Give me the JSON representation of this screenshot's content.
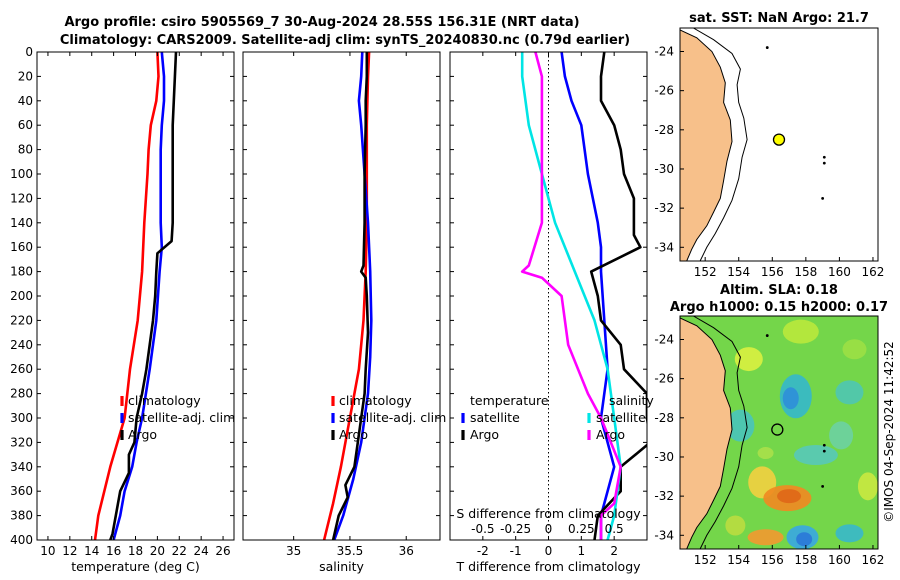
{
  "title_line1": "Argo profile: csiro 5905569_7 30-Aug-2024 28.55S 156.31E (NRT data)",
  "title_line2": "Climatology: CARS2009. Satellite-adj clim: synTS_20240830.nc (0.79d earlier)",
  "credit": "©IMOS 04-Sep-2024 11:42:52",
  "colors": {
    "climatology": "#ff0000",
    "satellite": "#0000ff",
    "argo": "#000000",
    "sat_salinity": "#00e5e5",
    "argo_salinity": "#ff00ff",
    "land": "#f7c08a"
  },
  "chart_data": [
    {
      "type": "line",
      "id": "temperature",
      "xlabel": "temperature (deg C)",
      "ylabel": "",
      "xlim": [
        9,
        27
      ],
      "ylim": [
        400,
        0
      ],
      "xticks": [
        10,
        12,
        14,
        16,
        18,
        20,
        22,
        24,
        26
      ],
      "yticks": [
        0,
        20,
        40,
        60,
        80,
        100,
        120,
        140,
        160,
        180,
        200,
        220,
        240,
        260,
        280,
        300,
        320,
        340,
        360,
        380,
        400
      ],
      "series": [
        {
          "name": "climatology",
          "depth": [
            0,
            20,
            40,
            60,
            80,
            100,
            140,
            180,
            220,
            260,
            300,
            340,
            380,
            400
          ],
          "values": [
            20.0,
            20.1,
            19.9,
            19.4,
            19.2,
            19.1,
            18.8,
            18.6,
            18.2,
            17.5,
            17.0,
            15.7,
            14.6,
            14.3
          ]
        },
        {
          "name": "satellite-adj. clim",
          "depth": [
            0,
            20,
            40,
            60,
            80,
            100,
            140,
            160,
            180,
            220,
            260,
            300,
            320,
            340,
            360,
            380,
            400
          ],
          "values": [
            20.4,
            20.6,
            20.6,
            20.4,
            20.3,
            20.3,
            20.3,
            20.4,
            20.2,
            19.9,
            19.3,
            18.6,
            18.1,
            17.7,
            17.0,
            16.6,
            16.0
          ]
        },
        {
          "name": "Argo",
          "depth": [
            0,
            20,
            40,
            60,
            80,
            100,
            120,
            140,
            155,
            165,
            180,
            200,
            220,
            240,
            260,
            280,
            300,
            320,
            330,
            345,
            360,
            380,
            395,
            400
          ],
          "values": [
            21.7,
            21.6,
            21.5,
            21.4,
            21.4,
            21.4,
            21.4,
            21.4,
            21.3,
            20.0,
            19.9,
            19.8,
            19.6,
            19.3,
            19.0,
            18.6,
            18.1,
            17.9,
            17.4,
            17.4,
            16.6,
            16.2,
            15.9,
            15.7
          ]
        }
      ],
      "legend": [
        "climatology",
        "satellite-adj. clim",
        "Argo"
      ]
    },
    {
      "type": "line",
      "id": "salinity",
      "xlabel": "salinity",
      "ylabel": "",
      "xlim": [
        34.55,
        36.3
      ],
      "ylim": [
        400,
        0
      ],
      "xticks": [
        35,
        35.5,
        36
      ],
      "series": [
        {
          "name": "climatology",
          "depth": [
            0,
            20,
            60,
            100,
            140,
            180,
            220,
            260,
            280,
            300,
            340,
            370,
            400
          ],
          "values": [
            35.67,
            35.66,
            35.65,
            35.65,
            35.65,
            35.64,
            35.62,
            35.58,
            35.54,
            35.5,
            35.42,
            35.35,
            35.27
          ]
        },
        {
          "name": "satellite-adj. clim",
          "depth": [
            0,
            20,
            40,
            60,
            100,
            140,
            180,
            220,
            250,
            280,
            300,
            320,
            350,
            380,
            400
          ],
          "values": [
            35.61,
            35.6,
            35.58,
            35.6,
            35.63,
            35.66,
            35.68,
            35.69,
            35.68,
            35.66,
            35.63,
            35.6,
            35.53,
            35.44,
            35.36
          ]
        },
        {
          "name": "Argo",
          "depth": [
            0,
            20,
            40,
            60,
            100,
            140,
            175,
            180,
            185,
            200,
            230,
            260,
            280,
            300,
            320,
            340,
            355,
            365,
            380,
            400
          ],
          "values": [
            35.65,
            35.65,
            35.64,
            35.64,
            35.63,
            35.63,
            35.62,
            35.6,
            35.64,
            35.65,
            35.66,
            35.64,
            35.63,
            35.6,
            35.57,
            35.54,
            35.46,
            35.48,
            35.4,
            35.35
          ]
        }
      ],
      "legend": [
        "climatology",
        "satellite-adj. clim",
        "Argo"
      ]
    },
    {
      "type": "line",
      "id": "difference",
      "xlabel": "T difference from climatology",
      "xlabel_top": "S difference from climatology",
      "xlim": [
        -3,
        3
      ],
      "ylim": [
        400,
        0
      ],
      "xticks": [
        -2,
        -1,
        0,
        1,
        2
      ],
      "xticks_top": [
        -0.5,
        -0.25,
        0,
        0.25,
        0.5
      ],
      "xticks_top_labels": [
        "-0.5",
        "-0.25",
        "0",
        "0.25",
        "0.5"
      ],
      "series": [
        {
          "name": "temperature satellite",
          "depth": [
            0,
            20,
            40,
            60,
            80,
            100,
            140,
            160,
            180,
            220,
            260,
            300,
            340,
            380,
            400
          ],
          "values": [
            0.4,
            0.5,
            0.7,
            1.0,
            1.1,
            1.2,
            1.5,
            1.6,
            1.6,
            1.7,
            1.8,
            1.6,
            2.0,
            1.6,
            1.6
          ]
        },
        {
          "name": "temperature Argo",
          "depth": [
            0,
            20,
            40,
            60,
            80,
            100,
            120,
            150,
            160,
            180,
            200,
            220,
            240,
            260,
            280,
            300,
            320,
            340,
            360,
            380,
            400
          ],
          "values": [
            1.7,
            1.6,
            1.6,
            2.0,
            2.2,
            2.3,
            2.6,
            2.6,
            2.8,
            1.3,
            1.5,
            1.6,
            2.2,
            2.3,
            3.0,
            3.0,
            3.1,
            2.2,
            2.2,
            1.5,
            1.4
          ]
        },
        {
          "name": "salinity satellite",
          "depth": [
            0,
            20,
            60,
            100,
            140,
            180,
            220,
            260,
            300,
            340,
            380,
            400
          ],
          "values": [
            -0.2,
            -0.2,
            -0.15,
            -0.05,
            0.05,
            0.2,
            0.35,
            0.45,
            0.5,
            0.55,
            0.5,
            0.45
          ]
        },
        {
          "name": "salinity Argo",
          "depth": [
            0,
            20,
            60,
            100,
            140,
            175,
            180,
            185,
            200,
            240,
            280,
            300,
            340,
            370,
            380,
            400
          ],
          "values": [
            -0.1,
            -0.05,
            -0.05,
            -0.05,
            -0.05,
            -0.15,
            -0.2,
            -0.05,
            0.1,
            0.15,
            0.3,
            0.4,
            0.55,
            0.5,
            0.4,
            0.4
          ]
        }
      ],
      "legend_left_title": "temperature",
      "legend_right_title": "salinity",
      "legend_left": [
        "satellite",
        "Argo"
      ],
      "legend_right": [
        "satellite",
        "Argo"
      ]
    },
    {
      "type": "map",
      "id": "sst",
      "title": "sat. SST: NaN Argo: 21.7",
      "xlim": [
        150.5,
        162.3
      ],
      "ylim": [
        -34.7,
        -22.8
      ],
      "xticks": [
        152,
        154,
        156,
        158,
        160,
        162
      ],
      "yticks": [
        -24,
        -26,
        -28,
        -30,
        -32,
        -34
      ],
      "float_position": [
        156.4,
        -28.5
      ]
    },
    {
      "type": "map",
      "id": "sla",
      "title_line1": "Altim. SLA: 0.18",
      "title_line2": "Argo h1000: 0.15 h2000: 0.17",
      "xlim": [
        150.5,
        162.3
      ],
      "ylim": [
        -34.7,
        -22.8
      ],
      "xticks": [
        152,
        154,
        156,
        158,
        160,
        162
      ],
      "yticks": [
        -24,
        -26,
        -28,
        -30,
        -32,
        -34
      ],
      "float_position": [
        156.3,
        -28.6
      ]
    }
  ]
}
